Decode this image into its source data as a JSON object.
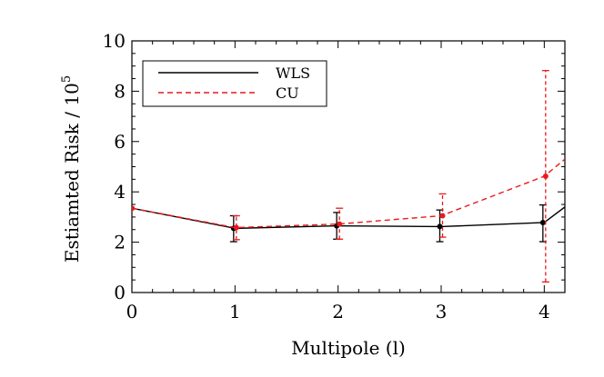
{
  "chart_data": {
    "type": "line",
    "xlabel": "Multipole (l)",
    "ylabel": "Estiamted Risk / 10",
    "ylabel_exponent": "5",
    "xlim": [
      0,
      4.2
    ],
    "ylim": [
      0,
      10
    ],
    "xticks": [
      0,
      1,
      2,
      3,
      4
    ],
    "yticks": [
      0,
      2,
      4,
      6,
      8,
      10
    ],
    "grid": false,
    "legend_position": "top-left",
    "series": [
      {
        "name": "WLS",
        "color": "#000000",
        "dash": "solid",
        "x": [
          0,
          1,
          2,
          3,
          4,
          4.2
        ],
        "y": [
          3.35,
          2.55,
          2.65,
          2.62,
          2.78,
          3.4
        ],
        "errors": [
          {
            "x": 1,
            "y": 2.55,
            "low": 2.02,
            "high": 3.05
          },
          {
            "x": 2,
            "y": 2.65,
            "low": 2.12,
            "high": 3.18
          },
          {
            "x": 3,
            "y": 2.62,
            "low": 2.02,
            "high": 3.28
          },
          {
            "x": 4,
            "y": 2.78,
            "low": 2.02,
            "high": 3.48
          }
        ]
      },
      {
        "name": "CU",
        "color": "#e8191c",
        "dash": "dashed",
        "x": [
          0,
          1,
          2,
          3,
          4,
          4.2
        ],
        "y": [
          3.35,
          2.58,
          2.72,
          3.05,
          4.62,
          5.3
        ],
        "errors": [
          {
            "x": 1,
            "y": 2.58,
            "low": 2.1,
            "high": 3.05
          },
          {
            "x": 2,
            "y": 2.72,
            "low": 2.12,
            "high": 3.35
          },
          {
            "x": 3,
            "y": 3.05,
            "low": 2.2,
            "high": 3.92
          },
          {
            "x": 4,
            "y": 4.62,
            "low": 0.42,
            "high": 8.82
          }
        ]
      }
    ]
  }
}
